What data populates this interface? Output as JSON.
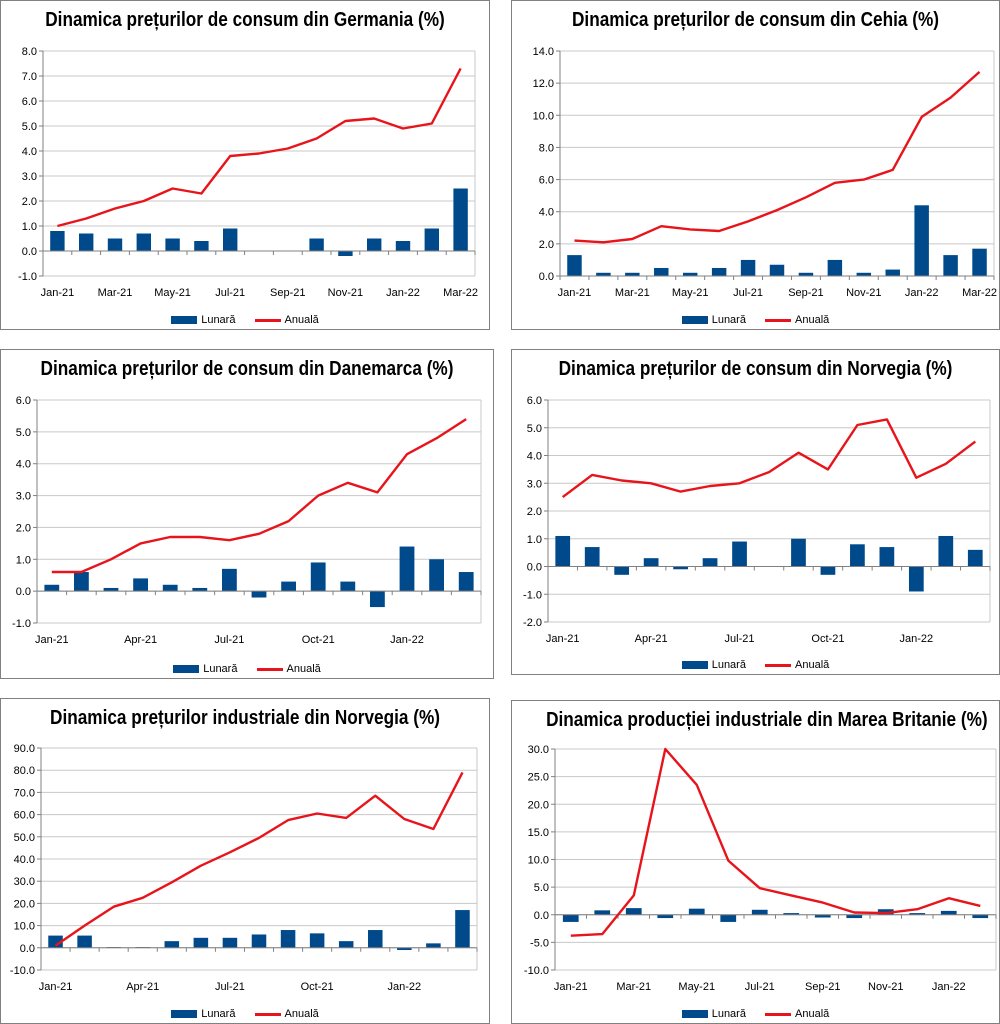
{
  "legend": {
    "monthly": "Lunară",
    "annual": "Anuală"
  },
  "colors": {
    "bar": "#004A8C",
    "line": "#E8141B",
    "axis": "#808080",
    "grid": "#C8C8C8"
  },
  "chart_data": [
    {
      "type": "bar",
      "title": "Dinamica prețurilor de consum din Germania (%)",
      "categories": [
        "Jan-21",
        "Feb-21",
        "Mar-21",
        "Apr-21",
        "May-21",
        "Jun-21",
        "Jul-21",
        "Aug-21",
        "Sep-21",
        "Oct-21",
        "Nov-21",
        "Dec-21",
        "Jan-22",
        "Feb-22",
        "Mar-22"
      ],
      "x_tick_labels": [
        "Jan-21",
        "",
        "Mar-21",
        "",
        "May-21",
        "",
        "Jul-21",
        "",
        "Sep-21",
        "",
        "Nov-21",
        "",
        "Jan-22",
        "",
        "Mar-22"
      ],
      "ylim": [
        -1,
        8
      ],
      "ytick_step": 1,
      "ytick_decimals": 1,
      "series": [
        {
          "name": "Lunară",
          "type": "bar",
          "values": [
            0.8,
            0.7,
            0.5,
            0.7,
            0.5,
            0.4,
            0.9,
            0.0,
            0.0,
            0.5,
            -0.2,
            0.5,
            0.4,
            0.9,
            2.5
          ]
        },
        {
          "name": "Anuală",
          "type": "line",
          "values": [
            1.0,
            1.3,
            1.7,
            2.0,
            2.5,
            2.3,
            3.8,
            3.9,
            4.1,
            4.5,
            5.2,
            5.3,
            4.9,
            5.1,
            7.3
          ]
        }
      ],
      "legend_position": "bottom",
      "grid": true
    },
    {
      "type": "bar",
      "title": "Dinamica prețurilor de consum din Cehia (%)",
      "categories": [
        "Jan-21",
        "Feb-21",
        "Mar-21",
        "Apr-21",
        "May-21",
        "Jun-21",
        "Jul-21",
        "Aug-21",
        "Sep-21",
        "Oct-21",
        "Nov-21",
        "Dec-21",
        "Jan-22",
        "Feb-22",
        "Mar-22"
      ],
      "x_tick_labels": [
        "Jan-21",
        "",
        "Mar-21",
        "",
        "May-21",
        "",
        "Jul-21",
        "",
        "Sep-21",
        "",
        "Nov-21",
        "",
        "Jan-22",
        "",
        "Mar-22"
      ],
      "ylim": [
        0,
        14
      ],
      "ytick_step": 2,
      "ytick_decimals": 1,
      "series": [
        {
          "name": "Lunară",
          "type": "bar",
          "values": [
            1.3,
            0.2,
            0.2,
            0.5,
            0.2,
            0.5,
            1.0,
            0.7,
            0.2,
            1.0,
            0.2,
            0.4,
            4.4,
            1.3,
            1.7
          ]
        },
        {
          "name": "Anuală",
          "type": "line",
          "values": [
            2.2,
            2.1,
            2.3,
            3.1,
            2.9,
            2.8,
            3.4,
            4.1,
            4.9,
            5.8,
            6.0,
            6.6,
            9.9,
            11.1,
            12.7
          ]
        }
      ],
      "legend_position": "bottom",
      "grid": true
    },
    {
      "type": "bar",
      "title": "Dinamica prețurilor de consum din Danemarca (%)",
      "categories": [
        "Jan-21",
        "Feb-21",
        "Mar-21",
        "Apr-21",
        "May-21",
        "Jun-21",
        "Jul-21",
        "Aug-21",
        "Sep-21",
        "Oct-21",
        "Nov-21",
        "Dec-21",
        "Jan-22",
        "Feb-22",
        "Mar-22"
      ],
      "x_tick_labels": [
        "Jan-21",
        "",
        "",
        "Apr-21",
        "",
        "",
        "Jul-21",
        "",
        "",
        "Oct-21",
        "",
        "",
        "Jan-22",
        "",
        ""
      ],
      "ylim": [
        -1,
        6
      ],
      "ytick_step": 1,
      "ytick_decimals": 1,
      "series": [
        {
          "name": "Lunară",
          "type": "bar",
          "values": [
            0.2,
            0.6,
            0.1,
            0.4,
            0.2,
            0.1,
            0.7,
            -0.2,
            0.3,
            0.9,
            0.3,
            -0.5,
            1.4,
            1.0,
            0.6
          ]
        },
        {
          "name": "Anuală",
          "type": "line",
          "values": [
            0.6,
            0.6,
            1.0,
            1.5,
            1.7,
            1.7,
            1.6,
            1.8,
            2.2,
            3.0,
            3.4,
            3.1,
            4.3,
            4.8,
            5.4
          ]
        }
      ],
      "legend_position": "bottom",
      "grid": true
    },
    {
      "type": "bar",
      "title": "Dinamica prețurilor de consum din Norvegia (%)",
      "categories": [
        "Jan-21",
        "Feb-21",
        "Mar-21",
        "Apr-21",
        "May-21",
        "Jun-21",
        "Jul-21",
        "Aug-21",
        "Sep-21",
        "Oct-21",
        "Nov-21",
        "Dec-21",
        "Jan-22",
        "Feb-22",
        "Mar-22"
      ],
      "x_tick_labels": [
        "Jan-21",
        "",
        "",
        "Apr-21",
        "",
        "",
        "Jul-21",
        "",
        "",
        "Oct-21",
        "",
        "",
        "Jan-22",
        "",
        ""
      ],
      "ylim": [
        -2,
        6
      ],
      "ytick_step": 1,
      "ytick_decimals": 1,
      "series": [
        {
          "name": "Lunară",
          "type": "bar",
          "values": [
            1.1,
            0.7,
            -0.3,
            0.3,
            -0.1,
            0.3,
            0.9,
            0.0,
            1.0,
            -0.3,
            0.8,
            0.7,
            -0.9,
            1.1,
            0.6
          ]
        },
        {
          "name": "Anuală",
          "type": "line",
          "values": [
            2.5,
            3.3,
            3.1,
            3.0,
            2.7,
            2.9,
            3.0,
            3.4,
            4.1,
            3.5,
            5.1,
            5.3,
            3.2,
            3.7,
            4.5
          ]
        }
      ],
      "legend_position": "bottom",
      "grid": true
    },
    {
      "type": "bar",
      "title": "Dinamica prețurilor industriale din Norvegia (%)",
      "categories": [
        "Jan-21",
        "Feb-21",
        "Mar-21",
        "Apr-21",
        "May-21",
        "Jun-21",
        "Jul-21",
        "Aug-21",
        "Sep-21",
        "Oct-21",
        "Nov-21",
        "Dec-21",
        "Jan-22",
        "Feb-22",
        "Mar-22"
      ],
      "x_tick_labels": [
        "Jan-21",
        "",
        "",
        "Apr-21",
        "",
        "",
        "Jul-21",
        "",
        "",
        "Oct-21",
        "",
        "",
        "Jan-22",
        "",
        ""
      ],
      "ylim": [
        -10,
        90
      ],
      "ytick_step": 10,
      "ytick_decimals": 1,
      "series": [
        {
          "name": "Lunară",
          "type": "bar",
          "values": [
            5.5,
            5.5,
            0.3,
            0.3,
            3.0,
            4.5,
            4.5,
            6.0,
            8.0,
            6.5,
            3.0,
            8.0,
            -1.0,
            2.0,
            17.0
          ]
        },
        {
          "name": "Anuală",
          "type": "line",
          "values": [
            1.0,
            10.0,
            18.5,
            22.5,
            29.5,
            37.0,
            43.0,
            49.5,
            57.5,
            60.5,
            58.5,
            68.5,
            58.0,
            53.5,
            79.0
          ]
        }
      ],
      "legend_position": "bottom",
      "grid": true
    },
    {
      "type": "bar",
      "title": "Dinamica producției industriale din Marea Britanie (%)",
      "categories": [
        "Jan-21",
        "Feb-21",
        "Mar-21",
        "Apr-21",
        "May-21",
        "Jun-21",
        "Jul-21",
        "Aug-21",
        "Sep-21",
        "Oct-21",
        "Nov-21",
        "Dec-21",
        "Jan-22",
        "Feb-22"
      ],
      "x_tick_labels": [
        "Jan-21",
        "",
        "Mar-21",
        "",
        "May-21",
        "",
        "Jul-21",
        "",
        "Sep-21",
        "",
        "Nov-21",
        "",
        "Jan-22",
        ""
      ],
      "ylim": [
        -10,
        30
      ],
      "ytick_step": 5,
      "ytick_decimals": 1,
      "series": [
        {
          "name": "Lunară",
          "type": "bar",
          "values": [
            -1.3,
            0.8,
            1.2,
            -0.6,
            1.1,
            -1.3,
            0.9,
            0.3,
            -0.5,
            -0.6,
            1.0,
            0.3,
            0.7,
            -0.6
          ]
        },
        {
          "name": "Anuală",
          "type": "line",
          "values": [
            -3.8,
            -3.5,
            3.5,
            30.0,
            23.5,
            9.8,
            4.8,
            3.5,
            2.2,
            0.4,
            0.3,
            1.0,
            3.0,
            1.6
          ]
        }
      ],
      "legend_position": "bottom",
      "grid": true
    }
  ]
}
